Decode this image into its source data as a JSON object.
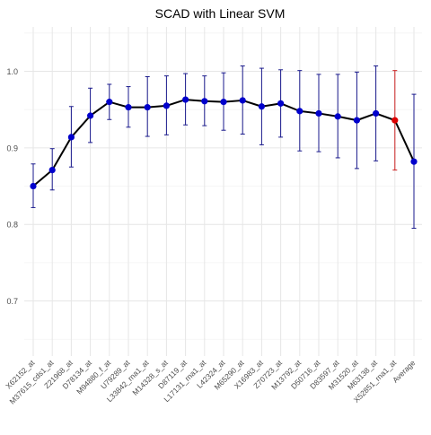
{
  "chart_data": {
    "type": "line",
    "title": "SCAD with Linear SVM",
    "xlabel": "",
    "ylabel": "",
    "ylim": [
      0.628,
      1.058
    ],
    "yticks": [
      0.7,
      0.8,
      0.9,
      1.0
    ],
    "ytick_labels": [
      "0.7",
      "0.8",
      "0.9",
      "1.0"
    ],
    "grid": true,
    "legend": "none",
    "categories": [
      "X62152_at",
      "M37615_cds1_at",
      "Z21968_at",
      "D78134_at",
      "M94880_f_at",
      "U79289_at",
      "L33842_rna1_at",
      "M14328_s_at",
      "D87119_at",
      "L17131_rna1_at",
      "L42324_at",
      "M65290_at",
      "X16983_at",
      "Z70723_at",
      "M13792_at",
      "D50716_at",
      "D83597_at",
      "M31520_at",
      "M63138_at",
      "X52851_rna1_at",
      "Average"
    ],
    "series": [
      {
        "values": [
          0.85,
          0.871,
          0.914,
          0.942,
          0.96,
          0.953,
          0.953,
          0.955,
          0.963,
          0.961,
          0.96,
          0.962,
          0.954,
          0.958,
          0.948,
          0.945,
          0.941,
          0.936,
          0.945,
          0.936,
          0.882
        ],
        "lower": [
          0.822,
          0.845,
          0.875,
          0.907,
          0.937,
          0.927,
          0.915,
          0.917,
          0.93,
          0.929,
          0.923,
          0.918,
          0.904,
          0.914,
          0.896,
          0.895,
          0.887,
          0.873,
          0.883,
          0.871,
          0.795
        ],
        "upper": [
          0.879,
          0.899,
          0.954,
          0.978,
          0.983,
          0.98,
          0.993,
          0.994,
          0.997,
          0.994,
          0.998,
          1.007,
          1.004,
          1.002,
          1.001,
          0.996,
          0.996,
          0.999,
          1.007,
          1.001,
          0.97
        ]
      }
    ],
    "highlight_index": 19,
    "colors": {
      "line": "#000000",
      "point": "#0000cc",
      "errorbar": "#1a1a8c",
      "highlight": "#dd0000",
      "highlight_errorbar": "#cc2222",
      "grid_major": "#e6e6e6",
      "grid_minor": "#f3f3f3",
      "tick_text": "#4d4d4d",
      "title_text": "#000000"
    }
  }
}
